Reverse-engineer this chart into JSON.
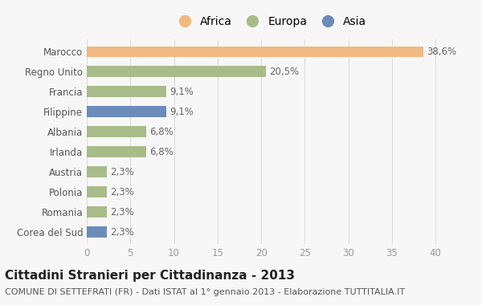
{
  "categories": [
    "Corea del Sud",
    "Romania",
    "Polonia",
    "Austria",
    "Irlanda",
    "Albania",
    "Filippine",
    "Francia",
    "Regno Unito",
    "Marocco"
  ],
  "values": [
    2.3,
    2.3,
    2.3,
    2.3,
    6.8,
    6.8,
    9.1,
    9.1,
    20.5,
    38.6
  ],
  "labels": [
    "2,3%",
    "2,3%",
    "2,3%",
    "2,3%",
    "6,8%",
    "6,8%",
    "9,1%",
    "9,1%",
    "20,5%",
    "38,6%"
  ],
  "colors": [
    "#6b8cba",
    "#a8bc8a",
    "#a8bc8a",
    "#a8bc8a",
    "#a8bc8a",
    "#a8bc8a",
    "#6b8cba",
    "#a8bc8a",
    "#a8bc8a",
    "#f0b982"
  ],
  "continent_colors": {
    "Africa": "#f0b982",
    "Europa": "#a8bc8a",
    "Asia": "#6b8cba"
  },
  "legend_labels": [
    "Africa",
    "Europa",
    "Asia"
  ],
  "title": "Cittadini Stranieri per Cittadinanza - 2013",
  "subtitle": "COMUNE DI SETTEFRATI (FR) - Dati ISTAT al 1° gennaio 2013 - Elaborazione TUTTITALIA.IT",
  "xlim": [
    0,
    42
  ],
  "xticks": [
    0,
    5,
    10,
    15,
    20,
    25,
    30,
    35,
    40
  ],
  "bg_color": "#f7f7f7",
  "bar_height": 0.55,
  "title_fontsize": 11,
  "subtitle_fontsize": 8,
  "label_fontsize": 8.5,
  "tick_fontsize": 8.5,
  "legend_fontsize": 10
}
